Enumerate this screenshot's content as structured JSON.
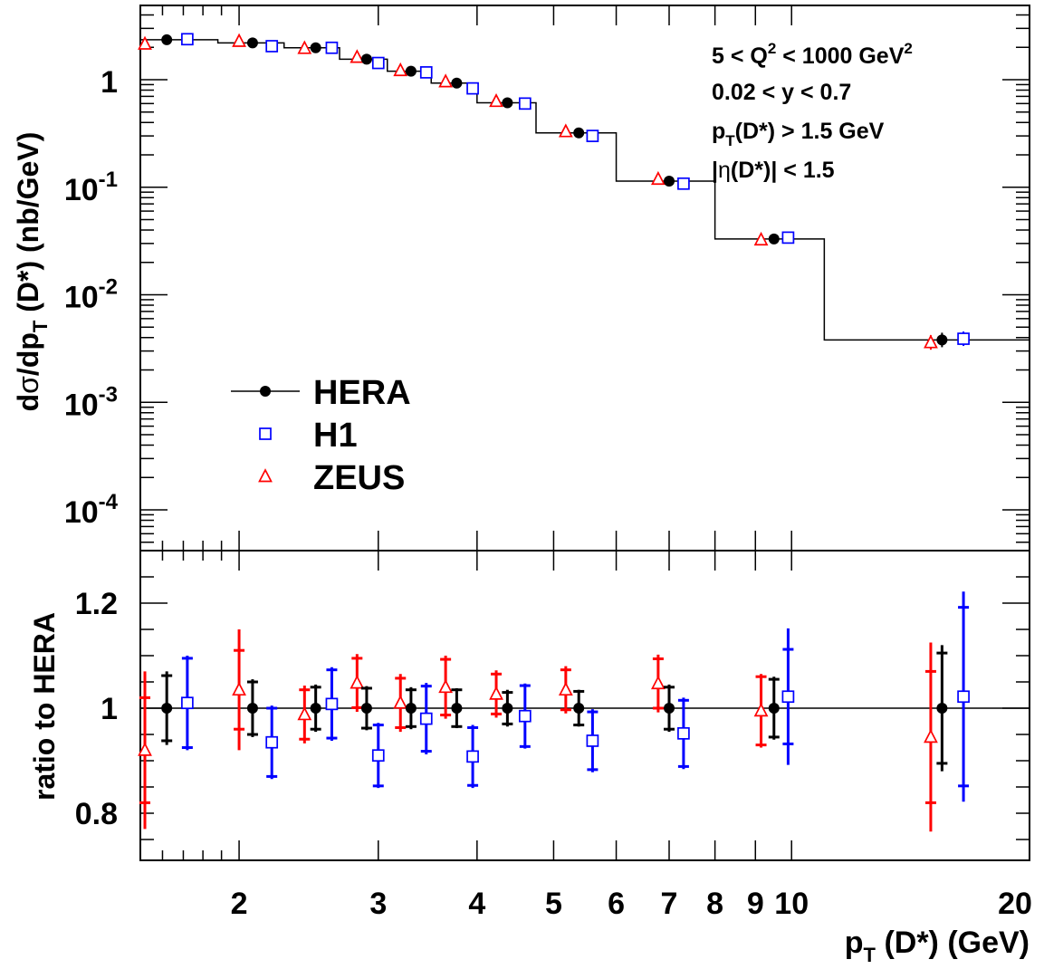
{
  "chart_data": [
    {
      "type": "scatter",
      "panel": "upper",
      "ylabel_parts": [
        "d",
        "σ",
        "/dp",
        "T",
        " (D*) (nb/GeV)"
      ],
      "yscale": "log",
      "ylim": [
        3e-05,
        4
      ],
      "xscale": "log",
      "xlim": [
        1.5,
        20
      ],
      "y_ticks": [
        {
          "value": 1,
          "base": "1",
          "exp": ""
        },
        {
          "value": 0.1,
          "base": "10",
          "exp": "-1"
        },
        {
          "value": 0.01,
          "base": "10",
          "exp": "-2"
        },
        {
          "value": 0.001,
          "base": "10",
          "exp": "-3"
        },
        {
          "value": 0.0001,
          "base": "10",
          "exp": "-4"
        }
      ],
      "annotations": [
        {
          "parts": [
            [
              "5 < Q",
              ""
            ],
            [
              "2",
              "sup"
            ],
            [
              " < 1000 GeV",
              ""
            ],
            [
              "2",
              "sup"
            ]
          ]
        },
        {
          "parts": [
            [
              "0.02 < y < 0.7",
              ""
            ]
          ]
        },
        {
          "parts": [
            [
              "p",
              ""
            ],
            [
              "T",
              "sub"
            ],
            [
              "(D*) > 1.5 GeV",
              ""
            ]
          ]
        },
        {
          "parts": [
            [
              "|",
              ""
            ],
            [
              "η",
              "greek"
            ],
            [
              "(D*)| < 1.5",
              ""
            ]
          ]
        }
      ],
      "legend": {
        "position": "lower-left",
        "entries": [
          {
            "label": "HERA",
            "marker": "filled-circle-line",
            "color": "#000000"
          },
          {
            "label": "H1",
            "marker": "open-square",
            "color": "#0000ff"
          },
          {
            "label": "ZEUS",
            "marker": "open-triangle",
            "color": "#ff0000"
          }
        ]
      },
      "bins": [
        1.5,
        1.88,
        2.28,
        2.68,
        3.08,
        3.5,
        4.0,
        4.75,
        6.0,
        8.0,
        11.0,
        20.0
      ],
      "hera_histogram": [
        2.35,
        2.2,
        1.98,
        1.55,
        1.2,
        0.93,
        0.61,
        0.32,
        0.114,
        0.033,
        0.0038
      ],
      "series": [
        {
          "name": "HERA",
          "color": "#000000",
          "marker": "filled-circle",
          "x": [
            1.62,
            2.08,
            2.5,
            2.9,
            3.3,
            3.77,
            4.37,
            5.38,
            7.0,
            9.5,
            15.5
          ],
          "y": [
            2.35,
            2.2,
            1.98,
            1.55,
            1.2,
            0.93,
            0.61,
            0.32,
            0.114,
            0.033,
            0.0038
          ]
        },
        {
          "name": "H1",
          "color": "#0000ff",
          "marker": "open-square",
          "x": [
            1.72,
            2.2,
            2.62,
            3.0,
            3.45,
            3.95,
            4.6,
            5.6,
            7.3,
            9.9,
            16.5
          ],
          "y": [
            2.38,
            2.05,
            1.98,
            1.43,
            1.17,
            0.83,
            0.6,
            0.3,
            0.108,
            0.034,
            0.0039
          ]
        },
        {
          "name": "ZEUS",
          "color": "#ff0000",
          "marker": "open-triangle",
          "x": [
            1.52,
            2.0,
            2.42,
            2.82,
            3.2,
            3.65,
            4.23,
            5.18,
            6.78,
            9.15,
            15.0
          ],
          "y": [
            2.15,
            2.28,
            1.96,
            1.62,
            1.22,
            0.96,
            0.63,
            0.33,
            0.119,
            0.0325,
            0.0036
          ]
        }
      ]
    },
    {
      "type": "scatter",
      "panel": "lower",
      "ylabel": "ratio to HERA",
      "xlabel_parts": [
        "p",
        "T",
        " (D*) (GeV)"
      ],
      "xscale": "log",
      "xlim": [
        1.5,
        20
      ],
      "ylim": [
        0.7,
        1.3
      ],
      "reference_line": 1,
      "y_ticks": [
        {
          "value": 0.8,
          "label": "0.8"
        },
        {
          "value": 1.0,
          "label": "1"
        },
        {
          "value": 1.2,
          "label": "1.2"
        }
      ],
      "x_ticks": [
        {
          "value": 2,
          "label": "2"
        },
        {
          "value": 3,
          "label": "3"
        },
        {
          "value": 4,
          "label": "4"
        },
        {
          "value": 5,
          "label": "5"
        },
        {
          "value": 6,
          "label": "6"
        },
        {
          "value": 7,
          "label": "7"
        },
        {
          "value": 8,
          "label": "8"
        },
        {
          "value": 9,
          "label": "9"
        },
        {
          "value": 10,
          "label": "10"
        },
        {
          "value": 20,
          "label": "20"
        }
      ],
      "series": [
        {
          "name": "HERA",
          "color": "#000000",
          "marker": "filled-circle",
          "x": [
            1.62,
            2.08,
            2.5,
            2.9,
            3.3,
            3.77,
            4.37,
            5.38,
            7.0,
            9.5,
            15.5
          ],
          "ratio": [
            1,
            1,
            1,
            1,
            1,
            1,
            1,
            1,
            1,
            1,
            1
          ],
          "err_inner": [
            0.062,
            0.05,
            0.04,
            0.038,
            0.035,
            0.035,
            0.03,
            0.032,
            0.04,
            0.055,
            0.105
          ],
          "err_outer": [
            0.07,
            0.055,
            0.045,
            0.042,
            0.04,
            0.038,
            0.035,
            0.035,
            0.045,
            0.06,
            0.12
          ]
        },
        {
          "name": "H1",
          "color": "#0000ff",
          "marker": "open-square",
          "x": [
            1.72,
            2.2,
            2.62,
            3.0,
            3.45,
            3.95,
            4.6,
            5.6,
            7.3,
            9.9,
            16.5
          ],
          "ratio": [
            1.01,
            0.935,
            1.008,
            0.91,
            0.98,
            0.908,
            0.985,
            0.938,
            0.952,
            1.022,
            1.022
          ],
          "err_inner": [
            0.085,
            0.065,
            0.065,
            0.058,
            0.062,
            0.055,
            0.058,
            0.055,
            0.063,
            0.09,
            0.17
          ],
          "err_outer": [
            0.09,
            0.07,
            0.07,
            0.062,
            0.068,
            0.06,
            0.062,
            0.06,
            0.068,
            0.13,
            0.2
          ]
        },
        {
          "name": "ZEUS",
          "color": "#ff0000",
          "marker": "open-triangle",
          "x": [
            1.52,
            2.0,
            2.42,
            2.82,
            3.2,
            3.65,
            4.23,
            5.18,
            6.78,
            9.15,
            15.0
          ],
          "ratio": [
            0.92,
            1.035,
            0.988,
            1.048,
            1.01,
            1.04,
            1.027,
            1.035,
            1.047,
            0.995,
            0.945
          ],
          "err_inner": [
            0.1,
            0.075,
            0.047,
            0.047,
            0.047,
            0.053,
            0.038,
            0.038,
            0.047,
            0.065,
            0.125
          ],
          "err_outer": [
            0.15,
            0.115,
            0.055,
            0.055,
            0.055,
            0.06,
            0.045,
            0.045,
            0.055,
            0.07,
            0.18
          ]
        }
      ]
    }
  ]
}
